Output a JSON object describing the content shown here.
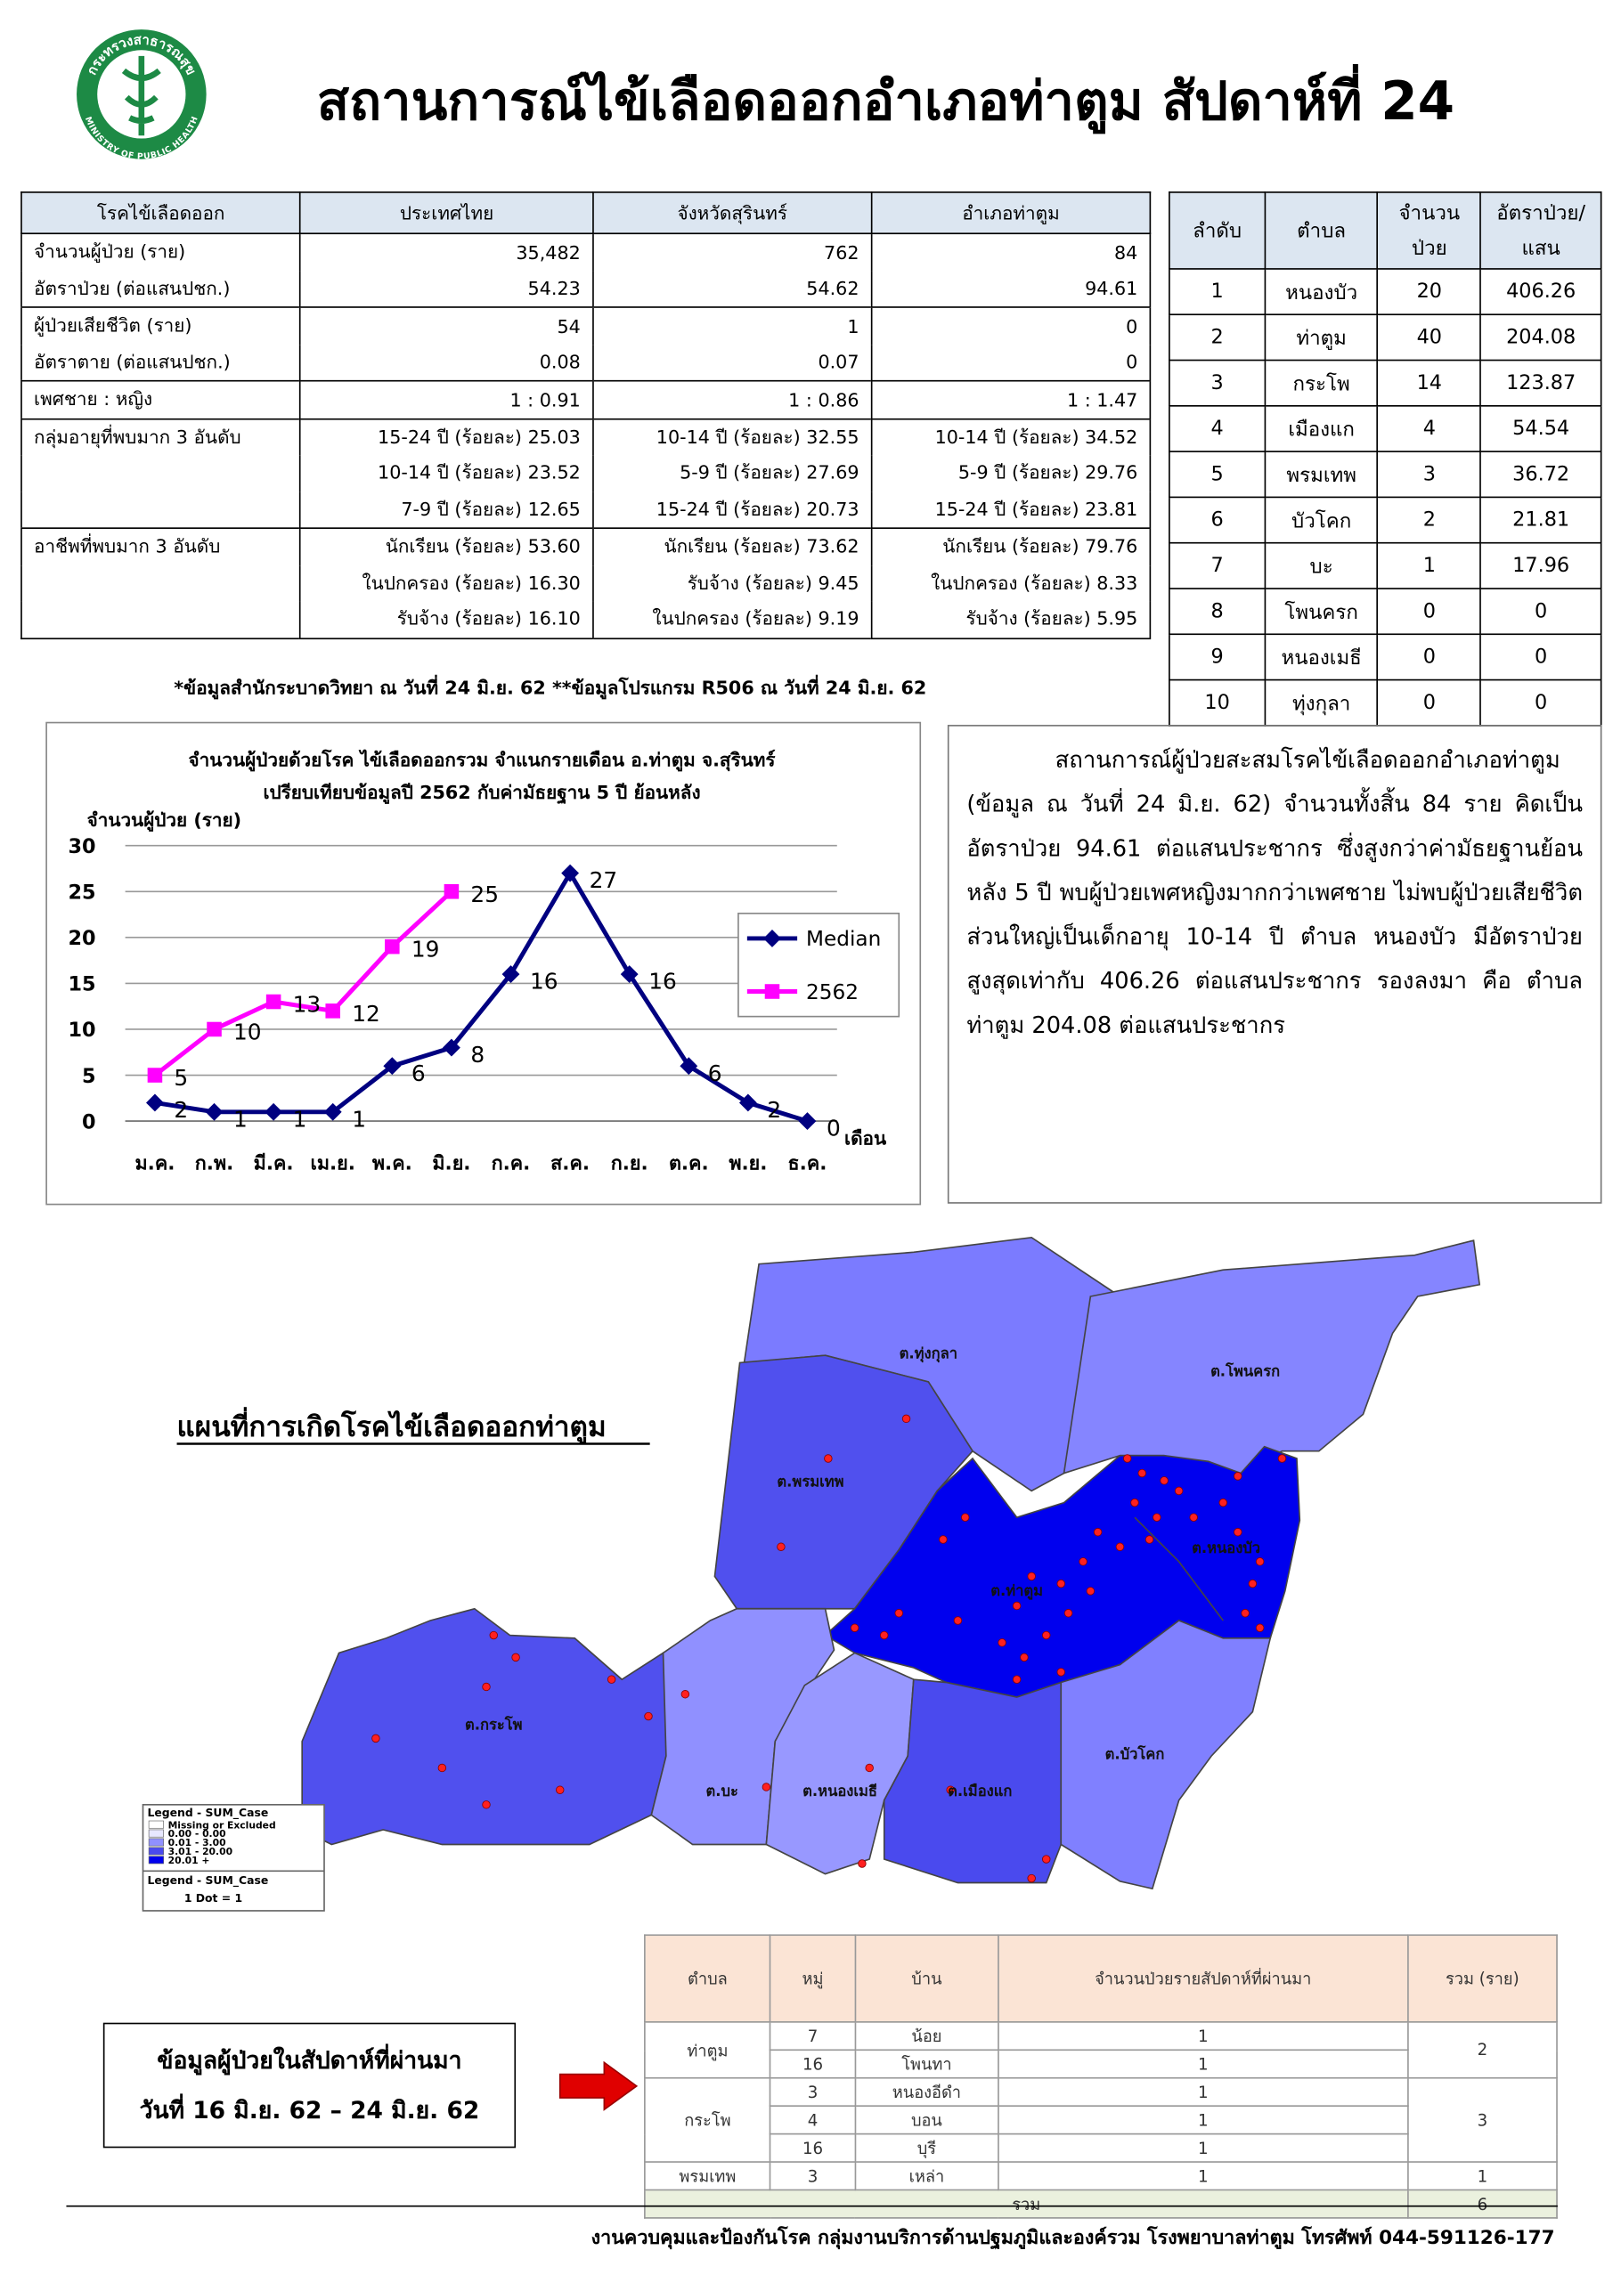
{
  "header": {
    "title": "สถานการณ์ไข้เลือดออกอำเภอท่าตูม สัปดาห์ที่ 24",
    "logo_top": "กระทรวงสาธารณสุข",
    "logo_bottom": "MINISTRY OF PUBLIC HEALTH"
  },
  "summary_table": {
    "header": [
      "โรคไข้เลือดออก",
      "ประเทศไทย",
      "จังหวัดสุรินทร์",
      "อำเภอท่าตูม"
    ],
    "groups": [
      {
        "rows": [
          {
            "label": "จำนวนผู้ป่วย (ราย)",
            "values": [
              "35,482",
              "762",
              "84"
            ]
          },
          {
            "label": "อัตราป่วย (ต่อแสนปชก.)",
            "values": [
              "54.23",
              "54.62",
              "94.61"
            ]
          }
        ]
      },
      {
        "rows": [
          {
            "label": "ผู้ป่วยเสียชีวิต (ราย)",
            "values": [
              "54",
              "1",
              "0"
            ]
          },
          {
            "label": "อัตราตาย (ต่อแสนปชก.)",
            "values": [
              "0.08",
              "0.07",
              "0"
            ]
          }
        ]
      },
      {
        "rows": [
          {
            "label": "เพศชาย : หญิง",
            "values": [
              "1 : 0.91",
              "1 : 0.86",
              "1 : 1.47"
            ]
          }
        ]
      },
      {
        "rows": [
          {
            "label": "กลุ่มอายุที่พบมาก 3 อันดับ",
            "values": [
              "15-24 ปี (ร้อยละ) 25.03",
              "10-14 ปี (ร้อยละ) 32.55",
              "10-14 ปี (ร้อยละ) 34.52"
            ]
          },
          {
            "values": [
              "10-14 ปี (ร้อยละ) 23.52",
              "5-9 ปี (ร้อยละ) 27.69",
              "5-9 ปี (ร้อยละ) 29.76"
            ]
          },
          {
            "values": [
              "7-9 ปี (ร้อยละ) 12.65",
              "15-24 ปี (ร้อยละ) 20.73",
              "15-24 ปี (ร้อยละ) 23.81"
            ]
          }
        ]
      },
      {
        "rows": [
          {
            "label": "อาชีพที่พบมาก 3 อันดับ",
            "values": [
              "นักเรียน (ร้อยละ) 53.60",
              "นักเรียน (ร้อยละ) 73.62",
              "นักเรียน (ร้อยละ) 79.76"
            ]
          },
          {
            "values": [
              "ในปกครอง (ร้อยละ) 16.30",
              "รับจ้าง (ร้อยละ) 9.45",
              "ในปกครอง (ร้อยละ) 8.33"
            ]
          },
          {
            "values": [
              "รับจ้าง (ร้อยละ) 16.10",
              "ในปกครอง (ร้อยละ) 9.19",
              "รับจ้าง (ร้อยละ) 5.95"
            ]
          }
        ]
      }
    ],
    "footnote": "*ข้อมูลสำนักระบาดวิทยา ณ วันที่ 24 มิ.ย. 62  **ข้อมูลโปรแกรม R506 ณ วันที่ 24 มิ.ย. 62"
  },
  "rank_table": {
    "header": [
      "ลำดับ",
      "ตำบล",
      "จำนวนป่วย",
      "อัตราป่วย/แสน"
    ],
    "rows": [
      [
        "1",
        "หนองบัว",
        "20",
        "406.26"
      ],
      [
        "2",
        "ท่าตูม",
        "40",
        "204.08"
      ],
      [
        "3",
        "กระโพ",
        "14",
        "123.87"
      ],
      [
        "4",
        "เมืองแก",
        "4",
        "54.54"
      ],
      [
        "5",
        "พรมเทพ",
        "3",
        "36.72"
      ],
      [
        "6",
        "บัวโคก",
        "2",
        "21.81"
      ],
      [
        "7",
        "บะ",
        "1",
        "17.96"
      ],
      [
        "8",
        "โพนครก",
        "0",
        "0"
      ],
      [
        "9",
        "หนองเมธี",
        "0",
        "0"
      ],
      [
        "10",
        "ทุ่งกุลา",
        "0",
        "0"
      ]
    ]
  },
  "chart_data": {
    "type": "line",
    "title": "จำนวนผู้ป่วยด้วยโรค  ไข้เลือดออกรวม จำแนกรายเดือน  อ.ท่าตูม จ.สุรินทร์",
    "subtitle": "เปรียบเทียบข้อมูลปี  2562  กับค่ามัธยฐาน 5 ปี ย้อนหลัง",
    "y_label": "จำนวนผู้ป่วย (ราย)",
    "x_label": "เดือน",
    "categories": [
      "ม.ค.",
      "ก.พ.",
      "มี.ค.",
      "เม.ย.",
      "พ.ค.",
      "มิ.ย.",
      "ก.ค.",
      "ส.ค.",
      "ก.ย.",
      "ต.ค.",
      "พ.ย.",
      "ธ.ค."
    ],
    "series": [
      {
        "name": "Median",
        "color": "#000080",
        "marker": "diamond",
        "values": [
          2,
          1,
          1,
          1,
          6,
          8,
          16,
          27,
          16,
          6,
          2,
          0
        ]
      },
      {
        "name": "2562",
        "color": "#ff00ff",
        "marker": "square",
        "values": [
          5,
          10,
          13,
          12,
          19,
          25,
          null,
          null,
          null,
          null,
          null,
          null
        ]
      }
    ],
    "ylim": [
      0,
      30
    ],
    "yticks": [
      0,
      5,
      10,
      15,
      20,
      25,
      30
    ],
    "grid": true,
    "legend": "right"
  },
  "summary_text": "สถานการณ์ผู้ป่วยสะสมโรคไข้เลือดออกอำเภอท่าตูม (ข้อมูล ณ วันที่ 24 มิ.ย. 62) จำนวนทั้งสิ้น 84 ราย คิดเป็นอัตราป่วย 94.61 ต่อแสนประชากร ซึ่งสูงกว่าค่ามัธยฐานย้อนหลัง 5 ปี พบผู้ป่วยเพศหญิงมากกว่าเพศชาย ไม่พบผู้ป่วยเสียชีวิต  ส่วนใหญ่เป็นเด็กอายุ 10-14 ปี ตำบล หนองบัว มีอัตราป่วยสูงสุดเท่ากับ 406.26 ต่อแสนประชากร รองลงมา คือ ตำบลท่าตูม  204.08 ต่อแสนประชากร",
  "map": {
    "title": "แผนที่การเกิดโรคไข้เลือดออกท่าตูม",
    "labels": [
      "ต.ทุ่งกุลา",
      "ต.โพนครก",
      "ต.พรมเทพ",
      "ต.หนองบัว",
      "ต.ท่าตูม",
      "ต.กระโพ",
      "ต.บะ",
      "ต.หนองเมธี",
      "ต.เมืองแก",
      "ต.บัวโคก"
    ],
    "legend": {
      "title": "Legend - SUM_Case",
      "items": [
        "Missing or Excluded",
        "0.00 - 0.00",
        "0.01 - 3.00",
        "3.01 - 20.00",
        "20.01 +"
      ],
      "dot_title": "Legend - SUM_Case",
      "dot_note": "1 Dot = 1"
    }
  },
  "weekly_box": {
    "line1": "ข้อมูลผู้ป่วยในสัปดาห์ที่ผ่านมา",
    "line2": "วันที่ 16 มิ.ย. 62 – 24 มิ.ย. 62"
  },
  "weekly_table": {
    "header": [
      "ตำบล",
      "หมู่",
      "บ้าน",
      "จำนวนป่วยรายสัปดาห์ที่ผ่านมา",
      "รวม (ราย)"
    ],
    "groups": [
      {
        "subdistrict": "ท่าตูม",
        "rows": [
          [
            "7",
            "น้อย",
            "1"
          ],
          [
            "16",
            "โพนทา",
            "1"
          ]
        ],
        "total": "2"
      },
      {
        "subdistrict": "กระโพ",
        "rows": [
          [
            "3",
            "หนองอีดำ",
            "1"
          ],
          [
            "4",
            "บอน",
            "1"
          ],
          [
            "16",
            "บุรี",
            "1"
          ]
        ],
        "total": "3"
      },
      {
        "subdistrict": "พรมเทพ",
        "rows": [
          [
            "3",
            "เหล่า",
            "1"
          ]
        ],
        "total": "1"
      }
    ],
    "total_label": "รวม",
    "total": "6"
  },
  "footer": "งานควบคุมและป้องกันโรค กลุ่มงานบริการด้านปฐมภูมิและองค์รวม  โรงพยาบาลท่าตูม  โทรศัพท์ 044-591126-177"
}
